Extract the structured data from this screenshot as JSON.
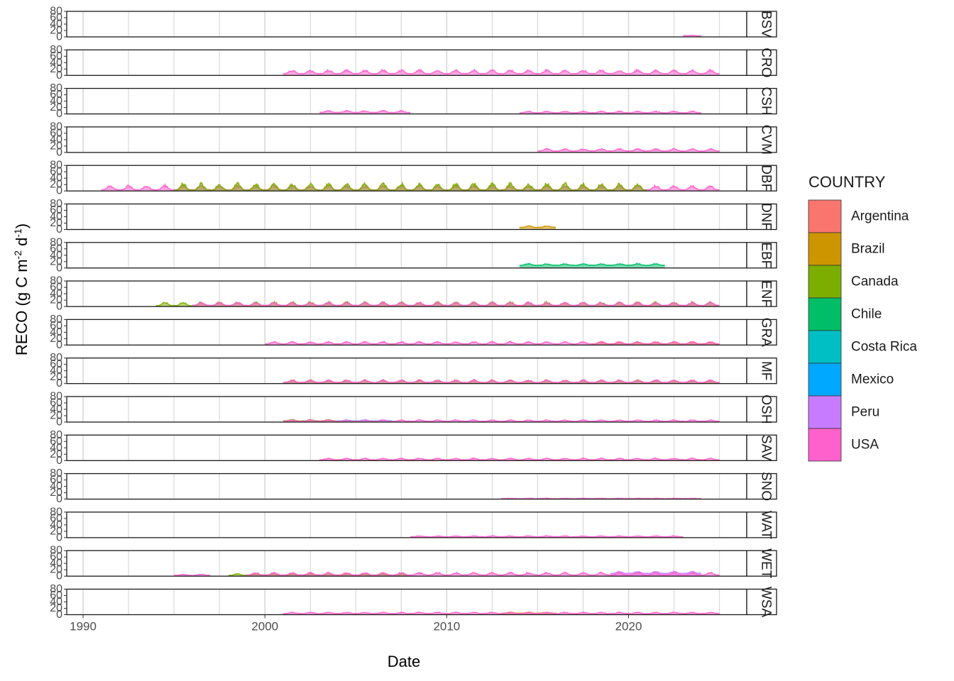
{
  "chart_data": {
    "type": "area",
    "xlabel": "Date",
    "ylabel": "RECO (g C m",
    "ylabel_sup1": "-2",
    "ylabel_mid": " d",
    "ylabel_sup2": "-1",
    "ylabel_end": ")",
    "x_ticks": [
      1990,
      2000,
      2010,
      2020
    ],
    "x_range": [
      1989.1,
      2026.5
    ],
    "y_ticks": [
      0,
      20,
      40,
      60,
      80
    ],
    "y_range": [
      0,
      80
    ],
    "grid": true,
    "legend": {
      "title": "COUNTRY",
      "position": "right",
      "entries": [
        {
          "label": "Argentina",
          "color": "#F8766D"
        },
        {
          "label": "Brazil",
          "color": "#CD9600"
        },
        {
          "label": "Canada",
          "color": "#7CAE00"
        },
        {
          "label": "Chile",
          "color": "#00BE67"
        },
        {
          "label": "Costa Rica",
          "color": "#00BFC4"
        },
        {
          "label": "Mexico",
          "color": "#00A9FF"
        },
        {
          "label": "Peru",
          "color": "#C77CFF"
        },
        {
          "label": "USA",
          "color": "#FF61CC"
        }
      ]
    },
    "panels": [
      {
        "strip": "BSV",
        "series": [
          {
            "country": "USA",
            "start": 2023.0,
            "end": 2024.0,
            "base": 3,
            "amp": 1,
            "seed": 1
          }
        ]
      },
      {
        "strip": "CRO",
        "series": [
          {
            "country": "USA",
            "start": 2001.0,
            "end": 2025.0,
            "base": 5,
            "amp": 12,
            "seed": 2
          }
        ]
      },
      {
        "strip": "CSH",
        "series": [
          {
            "country": "USA",
            "start": 2003.0,
            "end": 2008.0,
            "base": 4,
            "amp": 6,
            "seed": 3
          },
          {
            "country": "USA",
            "start": 2014.0,
            "end": 2024.0,
            "base": 3,
            "amp": 5,
            "seed": 4
          }
        ]
      },
      {
        "strip": "CVM",
        "series": [
          {
            "country": "USA",
            "start": 2015.0,
            "end": 2025.0,
            "base": 4,
            "amp": 7,
            "seed": 5
          }
        ]
      },
      {
        "strip": "DBF",
        "series": [
          {
            "country": "USA",
            "start": 1991.0,
            "end": 2025.0,
            "base": 3,
            "amp": 14,
            "seed": 6
          },
          {
            "country": "Canada",
            "start": 1995.0,
            "end": 2021.0,
            "base": 2,
            "amp": 22,
            "seed": 7
          }
        ]
      },
      {
        "strip": "DNF",
        "series": [
          {
            "country": "Brazil",
            "start": 2014.0,
            "end": 2016.0,
            "base": 6,
            "amp": 5,
            "seed": 8
          }
        ]
      },
      {
        "strip": "EBF",
        "series": [
          {
            "country": "Chile",
            "start": 2014.0,
            "end": 2022.0,
            "base": 8,
            "amp": 5,
            "seed": 9
          }
        ]
      },
      {
        "strip": "ENF",
        "series": [
          {
            "country": "Canada",
            "start": 1994.0,
            "end": 2025.0,
            "base": 2,
            "amp": 12,
            "seed": 10
          },
          {
            "country": "USA",
            "start": 1996.0,
            "end": 2025.0,
            "base": 3,
            "amp": 10,
            "seed": 11
          }
        ]
      },
      {
        "strip": "GRA",
        "series": [
          {
            "country": "Brazil",
            "start": 2018.0,
            "end": 2025.0,
            "base": 3,
            "amp": 6,
            "seed": 12
          },
          {
            "country": "USA",
            "start": 2000.0,
            "end": 2025.0,
            "base": 3,
            "amp": 7,
            "seed": 13
          }
        ]
      },
      {
        "strip": "MF",
        "series": [
          {
            "country": "Canada",
            "start": 2001.0,
            "end": 2025.0,
            "base": 2,
            "amp": 8,
            "seed": 14
          },
          {
            "country": "USA",
            "start": 2001.0,
            "end": 2025.0,
            "base": 3,
            "amp": 8,
            "seed": 15
          }
        ]
      },
      {
        "strip": "OSH",
        "series": [
          {
            "country": "Canada",
            "start": 2001.0,
            "end": 2004.0,
            "base": 3,
            "amp": 4,
            "seed": 16
          },
          {
            "country": "Mexico",
            "start": 2004.0,
            "end": 2007.0,
            "base": 3,
            "amp": 3,
            "seed": 17
          },
          {
            "country": "USA",
            "start": 2001.0,
            "end": 2025.0,
            "base": 2,
            "amp": 4,
            "seed": 18
          }
        ]
      },
      {
        "strip": "SAV",
        "series": [
          {
            "country": "USA",
            "start": 2003.0,
            "end": 2025.0,
            "base": 2,
            "amp": 5,
            "seed": 19
          }
        ]
      },
      {
        "strip": "SNO",
        "series": [
          {
            "country": "USA",
            "start": 2013.0,
            "end": 2024.0,
            "base": 1,
            "amp": 1,
            "seed": 20
          }
        ]
      },
      {
        "strip": "WAT",
        "series": [
          {
            "country": "USA",
            "start": 2008.0,
            "end": 2023.0,
            "base": 2,
            "amp": 3,
            "seed": 21
          }
        ]
      },
      {
        "strip": "WET",
        "series": [
          {
            "country": "USA",
            "start": 1995.0,
            "end": 1997.0,
            "base": 2,
            "amp": 3,
            "seed": 22
          },
          {
            "country": "Canada",
            "start": 1998.0,
            "end": 2008.0,
            "base": 2,
            "amp": 5,
            "seed": 23
          },
          {
            "country": "Peru",
            "start": 2019.0,
            "end": 2024.0,
            "base": 8,
            "amp": 6,
            "seed": 24
          },
          {
            "country": "USA",
            "start": 1999.0,
            "end": 2025.0,
            "base": 3,
            "amp": 8,
            "seed": 25
          }
        ]
      },
      {
        "strip": "WSA",
        "series": [
          {
            "country": "Brazil",
            "start": 2013.0,
            "end": 2016.0,
            "base": 4,
            "amp": 3,
            "seed": 26
          },
          {
            "country": "USA",
            "start": 2001.0,
            "end": 2025.0,
            "base": 3,
            "amp": 4,
            "seed": 27
          }
        ]
      }
    ]
  }
}
